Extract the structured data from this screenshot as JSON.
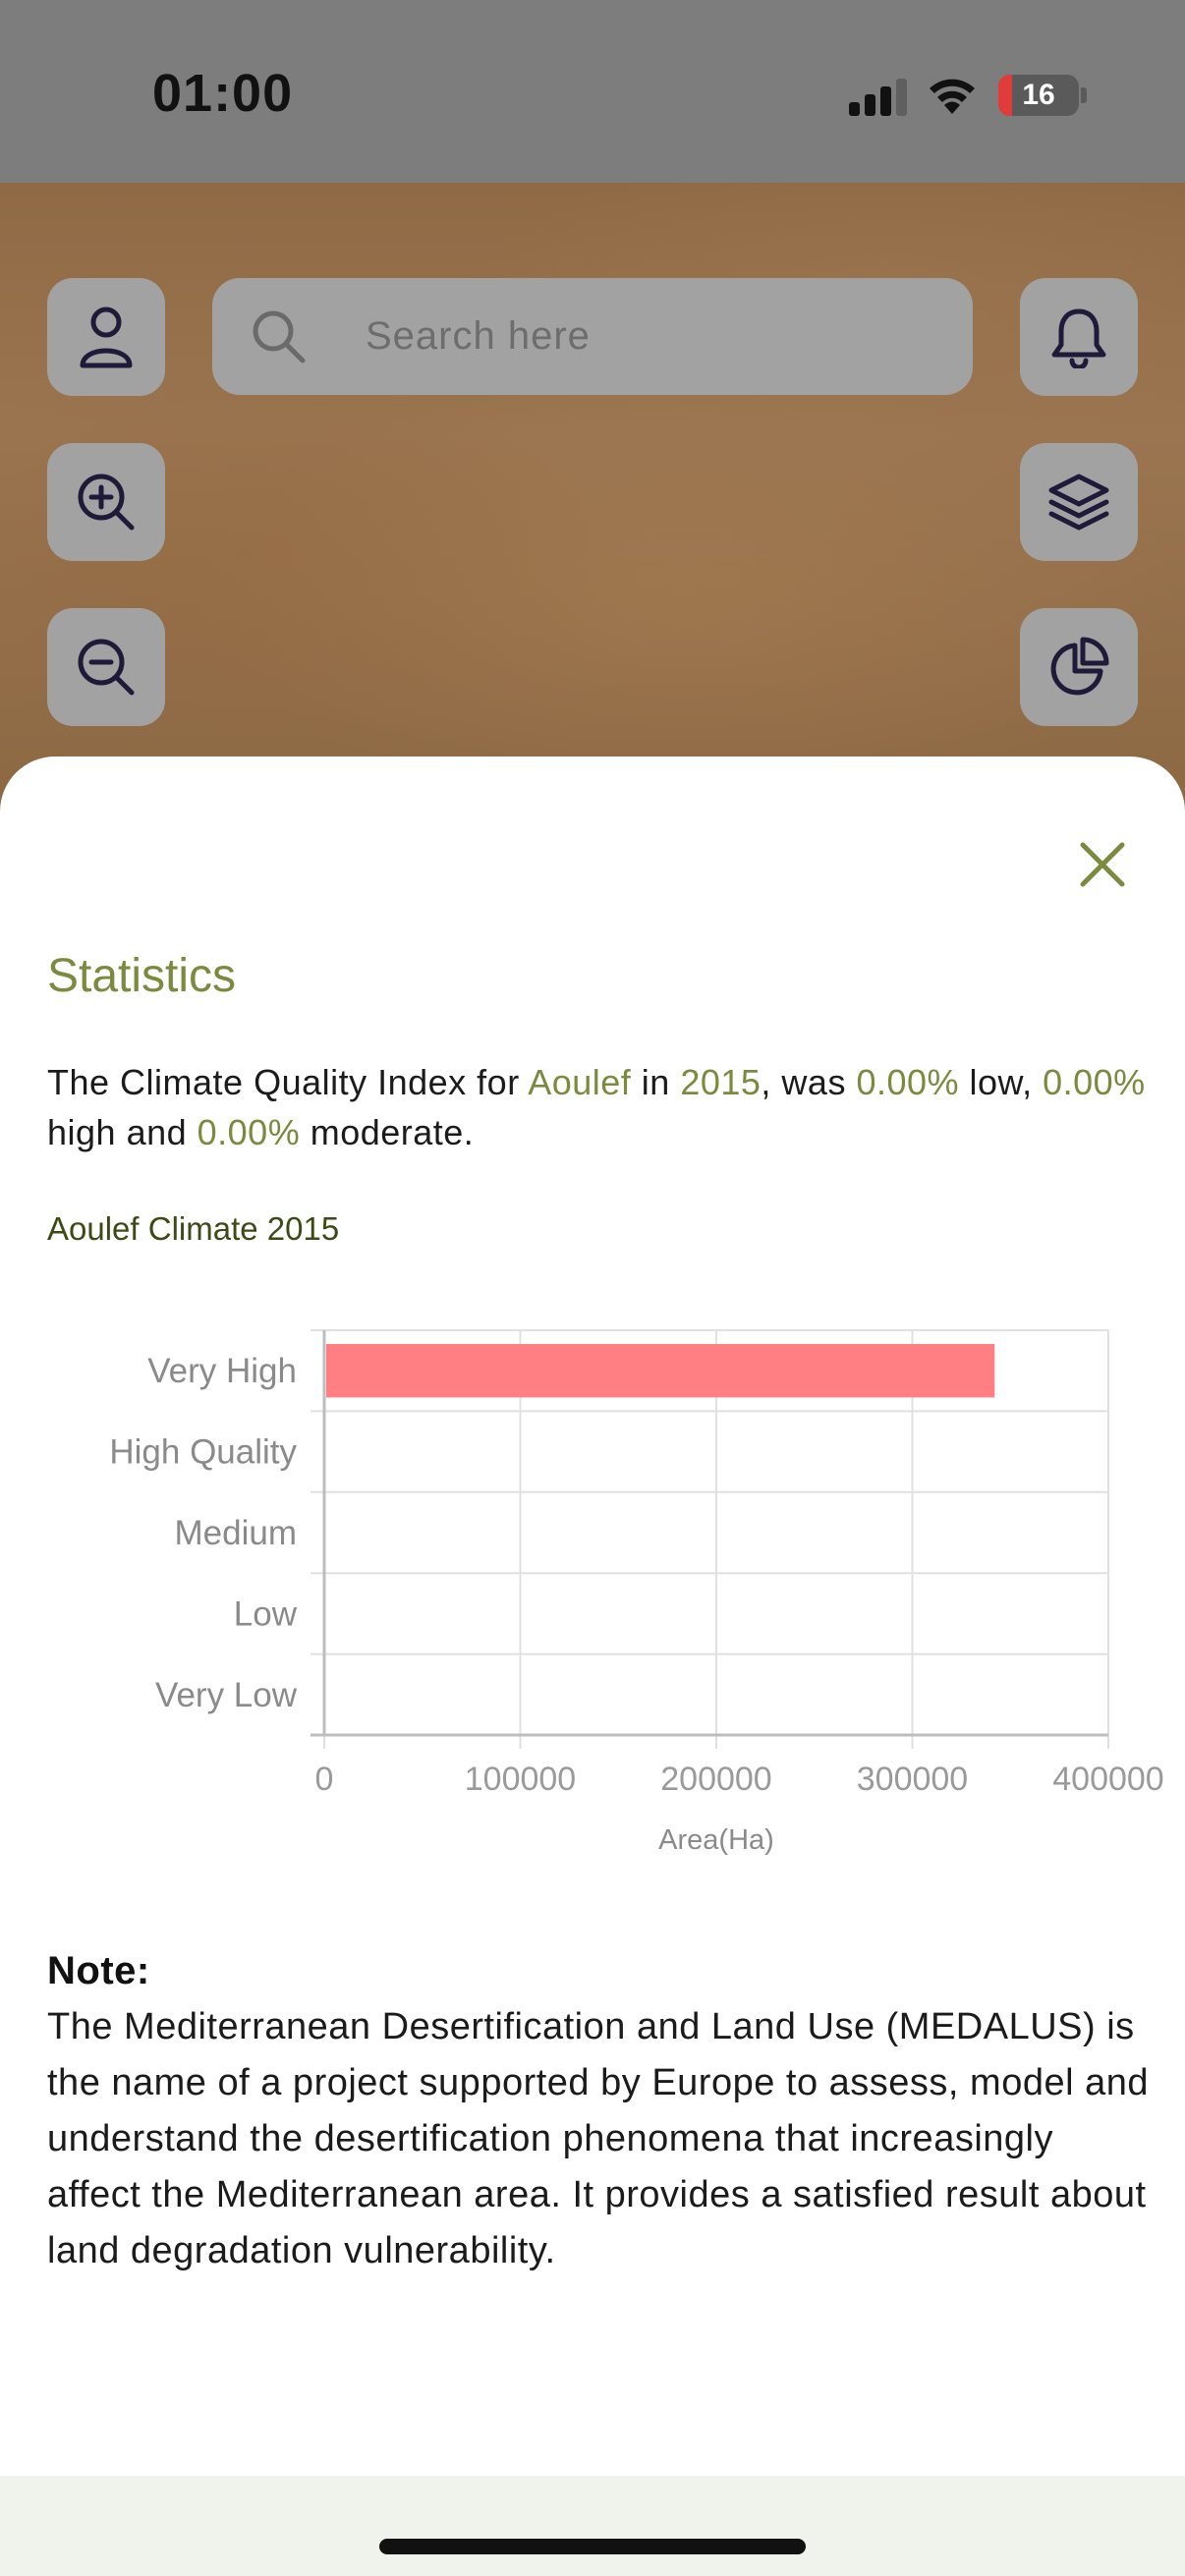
{
  "status_bar": {
    "time": "01:00",
    "battery": "16"
  },
  "map": {
    "search_placeholder": "Search here",
    "buttons": [
      "user-icon",
      "bell-icon",
      "zoom-in-icon",
      "layers-icon",
      "zoom-out-icon",
      "pie-chart-icon"
    ]
  },
  "sheet": {
    "title": "Statistics",
    "summary": {
      "t1": "The Climate Quality Index for ",
      "place": "Aoulef",
      "t2": " in ",
      "year": "2015",
      "t3": ", was  ",
      "low": "0.00%",
      "t4": " low, ",
      "high": "0.00%",
      "t5": " high and ",
      "moderate": "0.00%",
      "t6": " moderate."
    },
    "chart_title": "Aoulef Climate 2015",
    "note_title": "Note:",
    "note_body": "The Mediterranean Desertification and Land Use (MEDALUS) is the name of a project supported by Europe to assess, model and understand the desertification phenomena that increasingly affect the Mediterranean area. It provides a satisfied result about land degradation vulnerability."
  },
  "colors": {
    "accent": "#7b8a3f",
    "bar": "#ff7f82"
  },
  "chart_data": {
    "type": "bar",
    "orientation": "horizontal",
    "title": "Aoulef Climate 2015",
    "categories": [
      "Very High",
      "High Quality",
      "Medium",
      "Low",
      "Very Low"
    ],
    "values": [
      342000,
      0,
      0,
      0,
      0
    ],
    "xlabel": "Area(Ha)",
    "ylabel": "",
    "xlim": [
      0,
      400000
    ],
    "xticks": [
      "0",
      "100000",
      "200000",
      "300000",
      "400000"
    ],
    "grid": true
  }
}
